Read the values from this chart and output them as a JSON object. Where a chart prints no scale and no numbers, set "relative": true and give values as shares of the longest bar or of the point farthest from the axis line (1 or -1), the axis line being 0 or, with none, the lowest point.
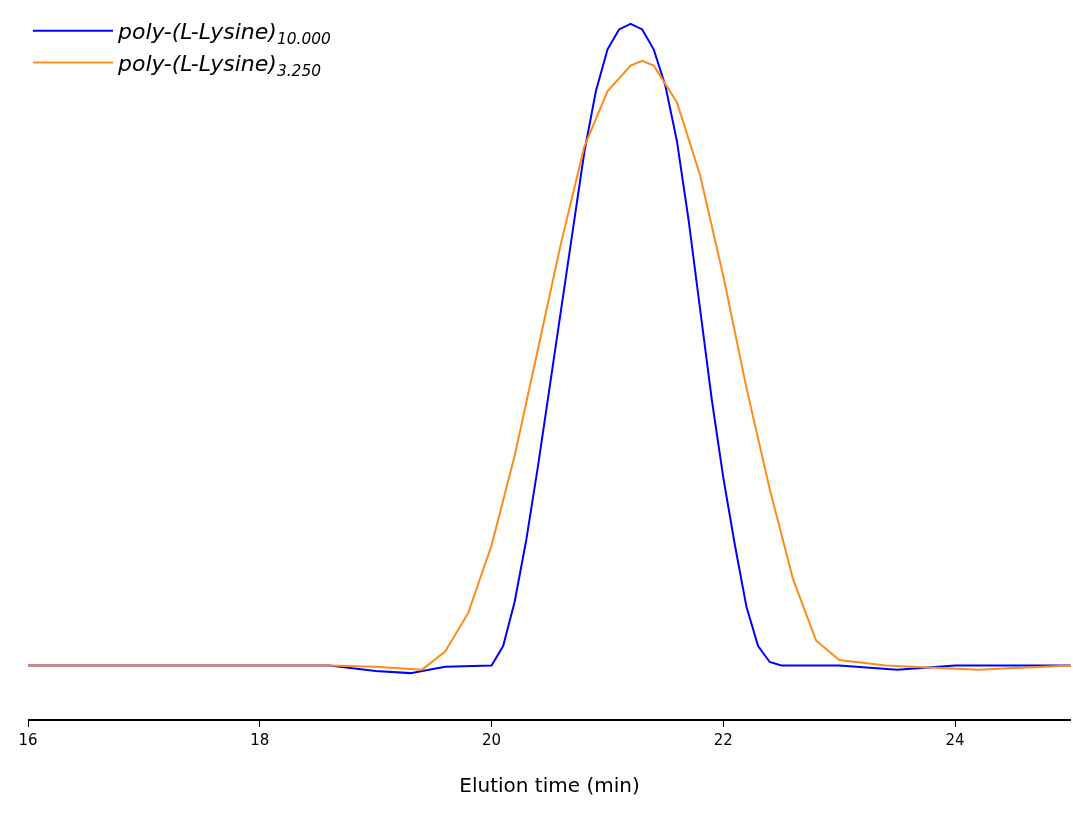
{
  "chart_data": {
    "type": "line",
    "relative": true,
    "xlabel": "Elution time (min)",
    "xlim": [
      16,
      25
    ],
    "xticks": [
      16,
      18,
      20,
      22,
      24
    ],
    "tick_labels": "x",
    "legend": "top left",
    "series": [
      {
        "name": "poly-(L-Lysine)$_{10.000}$",
        "color": "#0000ff",
        "x": [
          16,
          18.6,
          19.0,
          19.3,
          19.6,
          20.0,
          20.1,
          20.2,
          20.3,
          20.4,
          20.5,
          20.6,
          20.7,
          20.8,
          20.9,
          21.0,
          21.1,
          21.2,
          21.3,
          21.4,
          21.5,
          21.6,
          21.7,
          21.8,
          21.9,
          22.0,
          22.1,
          22.2,
          22.3,
          22.4,
          22.5,
          23.0,
          23.5,
          24.0,
          25.0
        ],
        "values": [
          0.077,
          0.077,
          0.069,
          0.066,
          0.075,
          0.077,
          0.105,
          0.169,
          0.258,
          0.363,
          0.476,
          0.589,
          0.702,
          0.815,
          0.903,
          0.963,
          0.992,
          1.0,
          0.992,
          0.963,
          0.911,
          0.831,
          0.718,
          0.589,
          0.46,
          0.347,
          0.25,
          0.161,
          0.105,
          0.082,
          0.077,
          0.077,
          0.071,
          0.077,
          0.077
        ]
      },
      {
        "name": "poly-(L-Lysine)$_{3.250}$",
        "color": "#ff8c1a",
        "x": [
          16,
          18.6,
          19.0,
          19.4,
          19.6,
          19.8,
          20.0,
          20.2,
          20.4,
          20.6,
          20.8,
          21.0,
          21.2,
          21.3,
          21.4,
          21.6,
          21.8,
          22.0,
          22.2,
          22.4,
          22.6,
          22.8,
          23.0,
          23.4,
          24.2,
          25.0
        ],
        "values": [
          0.077,
          0.077,
          0.075,
          0.071,
          0.097,
          0.153,
          0.25,
          0.379,
          0.532,
          0.685,
          0.823,
          0.903,
          0.94,
          0.947,
          0.94,
          0.887,
          0.782,
          0.637,
          0.476,
          0.331,
          0.202,
          0.113,
          0.085,
          0.077,
          0.071,
          0.077
        ]
      }
    ]
  }
}
